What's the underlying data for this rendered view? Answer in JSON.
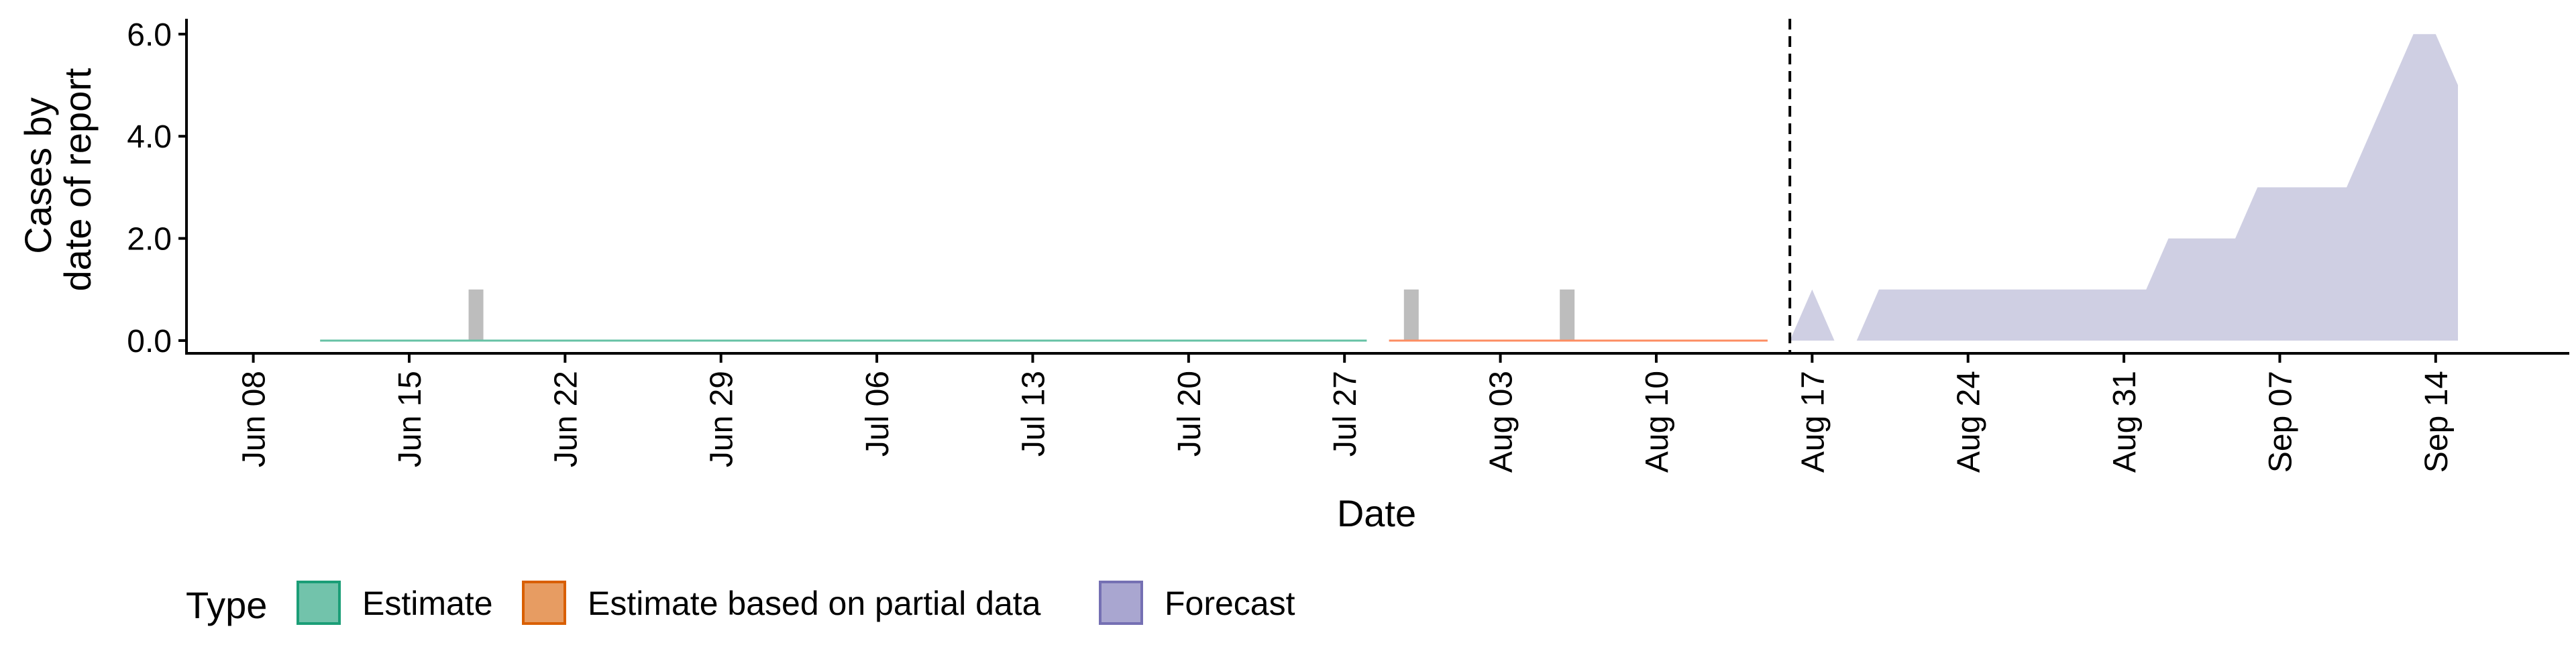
{
  "chart_data": {
    "type": "area",
    "xlabel": "Date",
    "ylabel_lines": [
      "Cases by",
      "date of report"
    ],
    "x_ticks": [
      "Jun 08",
      "Jun 15",
      "Jun 22",
      "Jun 29",
      "Jul 06",
      "Jul 13",
      "Jul 20",
      "Jul 27",
      "Aug 03",
      "Aug 10",
      "Aug 17",
      "Aug 24",
      "Aug 31",
      "Sep 07",
      "Sep 14"
    ],
    "y_ticks": [
      "0.0",
      "2.0",
      "4.0",
      "6.0"
    ],
    "x_range": [
      "2020-06-05",
      "2020-09-20"
    ],
    "ylim": [
      -0.25,
      6.3
    ],
    "forecast_start": "2020-08-16",
    "legend": {
      "title": "Type",
      "placement": "bottom-left",
      "entries": [
        {
          "label": "Estimate",
          "color": "#1b9e77"
        },
        {
          "label": "Estimate based on partial data",
          "color": "#d95f02"
        },
        {
          "label": "Forecast",
          "color": "#7570b3"
        }
      ]
    },
    "series": [
      {
        "name": "Estimate",
        "kind": "line",
        "color": "#66c2a5",
        "x": [
          "2020-06-11",
          "2020-07-28"
        ],
        "y": [
          0,
          0
        ]
      },
      {
        "name": "Estimate based on partial data",
        "kind": "line",
        "color": "#fc8d62",
        "x": [
          "2020-07-29",
          "2020-08-15"
        ],
        "y": [
          0,
          0
        ]
      },
      {
        "name": "Forecast",
        "kind": "area",
        "color": "#cfcfe3",
        "x": [
          "2020-08-16",
          "2020-08-17",
          "2020-08-18",
          "2020-08-19",
          "2020-08-20",
          "2020-08-21",
          "2020-08-22",
          "2020-08-23",
          "2020-08-24",
          "2020-08-25",
          "2020-08-26",
          "2020-08-27",
          "2020-08-28",
          "2020-08-29",
          "2020-08-30",
          "2020-08-31",
          "2020-09-01",
          "2020-09-02",
          "2020-09-03",
          "2020-09-04",
          "2020-09-05",
          "2020-09-06",
          "2020-09-07",
          "2020-09-08",
          "2020-09-09",
          "2020-09-10",
          "2020-09-11",
          "2020-09-12",
          "2020-09-13",
          "2020-09-14",
          "2020-09-15"
        ],
        "y": [
          0,
          1,
          0,
          0,
          1,
          1,
          1,
          1,
          1,
          1,
          1,
          1,
          1,
          1,
          1,
          1,
          1,
          2,
          2,
          2,
          2,
          3,
          3,
          3,
          3,
          3,
          4,
          5,
          6,
          6,
          5
        ]
      }
    ],
    "reported_cases": {
      "color": "#bdbdbd",
      "x": [
        "2020-06-18",
        "2020-07-30",
        "2020-08-06"
      ],
      "y": [
        1,
        1,
        1
      ]
    }
  }
}
